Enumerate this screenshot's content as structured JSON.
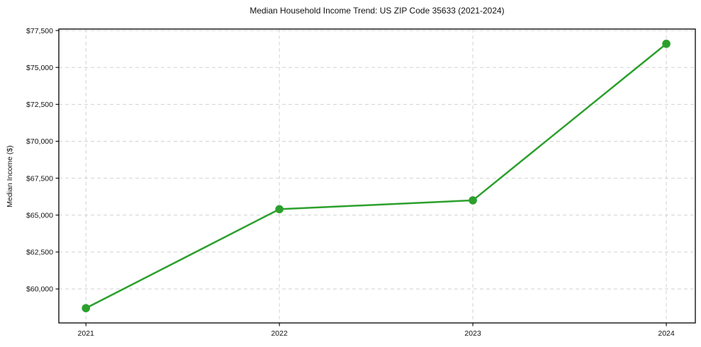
{
  "page": {
    "background": "#ffffff"
  },
  "chart_data": {
    "type": "line",
    "title": "Median Household Income Trend: US ZIP Code 35633 (2021-2024)",
    "xlabel": "",
    "ylabel": "Median Income ($)",
    "x": [
      2021,
      2022,
      2023,
      2024
    ],
    "x_tick_labels": [
      "2021",
      "2022",
      "2023",
      "2024"
    ],
    "values": [
      58700,
      65400,
      66000,
      76600
    ],
    "y_ticks": [
      60000,
      62500,
      65000,
      67500,
      70000,
      72500,
      75000,
      77500
    ],
    "y_tick_labels": [
      "$60,000",
      "$62,500",
      "$65,000",
      "$67,500",
      "$70,000",
      "$72,500",
      "$75,000",
      "$77,500"
    ],
    "xlim": [
      2020.86,
      2024.15
    ],
    "ylim": [
      57700,
      77600
    ],
    "grid": true,
    "grid_style": "dashed",
    "legend": "none",
    "line_color": "#2ca02c",
    "marker": "circle",
    "marker_color": "#2ca02c",
    "grid_color": "#d2d2d2",
    "axis_color": "#000000",
    "text_color": "#111111"
  }
}
